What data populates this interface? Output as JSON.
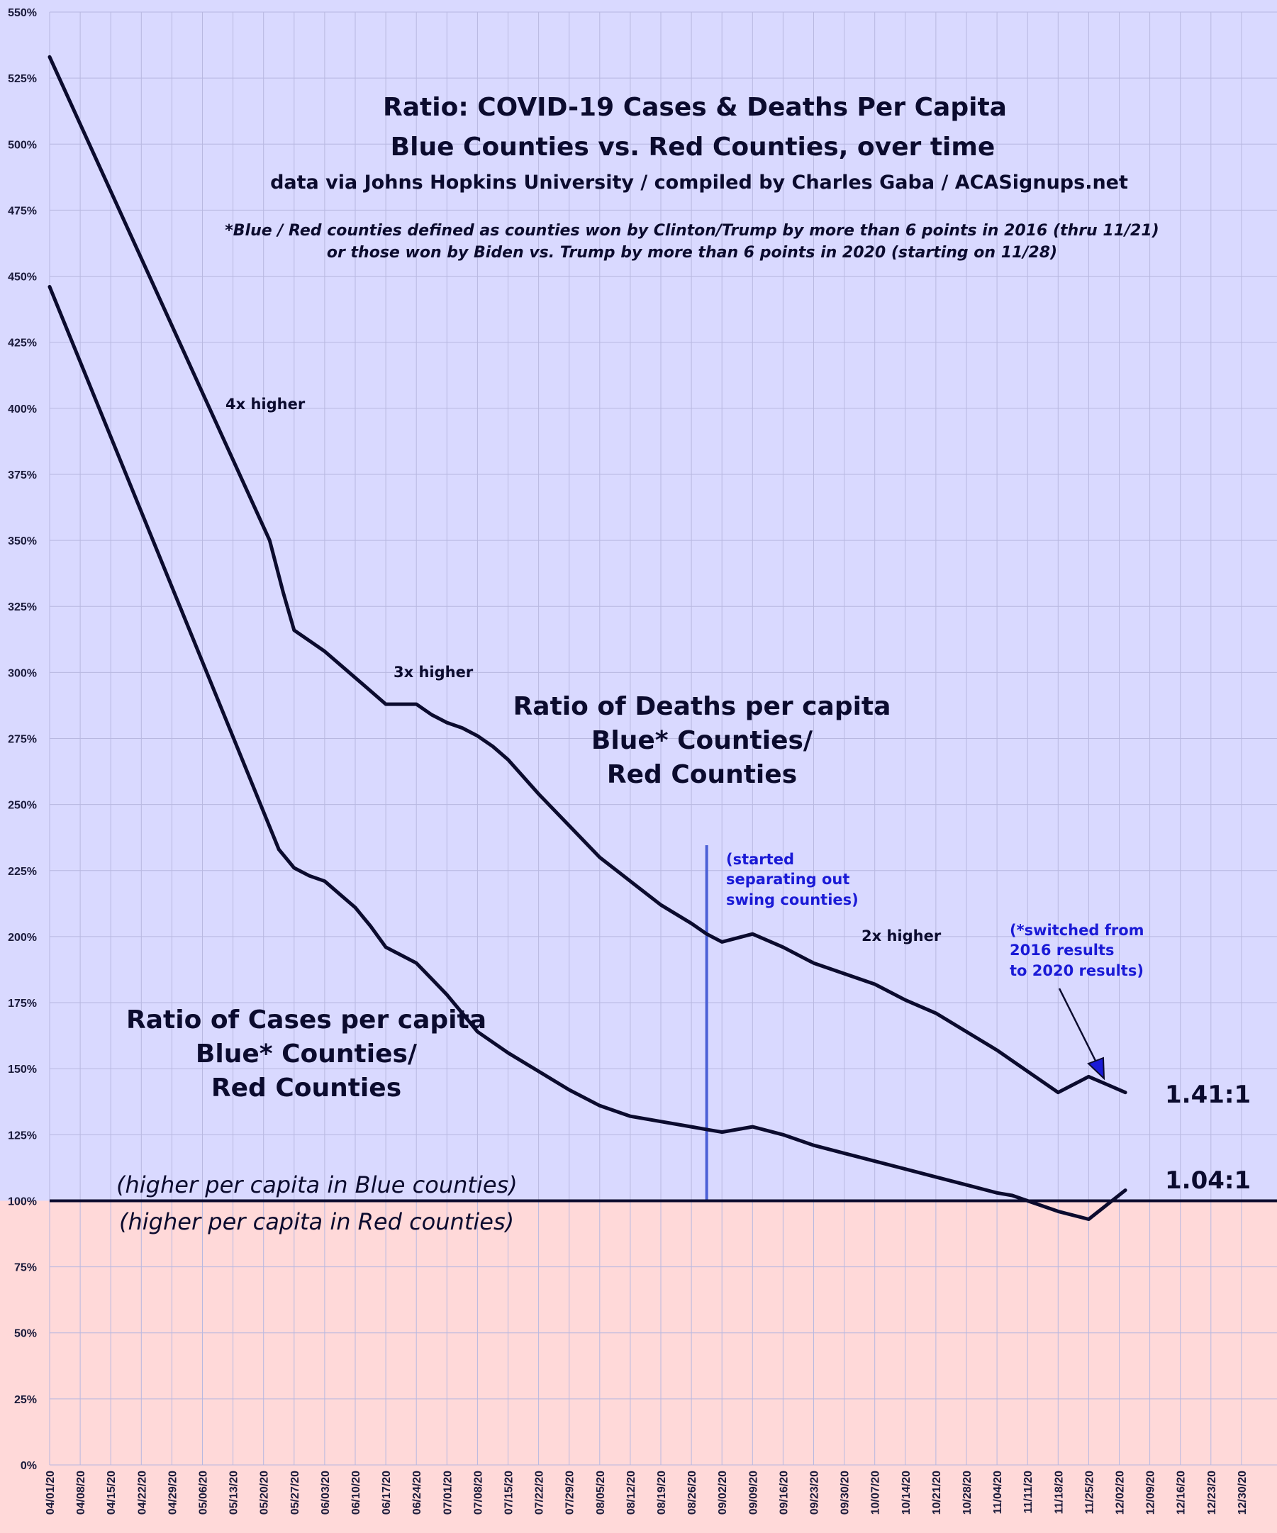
{
  "colors": {
    "blue_region": "#d9d9ff",
    "red_region": "#ffd9d9",
    "grid": "#b8b8e0",
    "line": "#0b0b2e",
    "marker_line": "#4a5fd6",
    "blue_text": "#1a1ad6"
  },
  "chart_data": {
    "type": "line",
    "title": "Ratio: COVID-19 Cases & Deaths Per Capita",
    "subtitle": "Blue Counties vs. Red Counties, over time",
    "source": "data via Johns Hopkins University / compiled by Charles Gaba / ACASignups.net",
    "footnote_line1": "*Blue / Red counties defined as counties won by Clinton/Trump by more than 6 points in 2016 (thru 11/21)",
    "footnote_line2": "or those won by Biden vs. Trump by more than 6 points in 2020 (starting on 11/28)",
    "xlabel": "",
    "ylabel": "",
    "ylim": [
      0,
      550
    ],
    "y_ticks": [
      "0%",
      "25%",
      "50%",
      "75%",
      "100%",
      "125%",
      "150%",
      "175%",
      "200%",
      "225%",
      "250%",
      "275%",
      "300%",
      "325%",
      "350%",
      "375%",
      "400%",
      "425%",
      "450%",
      "475%",
      "500%",
      "525%",
      "550%"
    ],
    "x_tick_labels": [
      "04/01/20",
      "04/08/20",
      "04/15/20",
      "04/22/20",
      "04/29/20",
      "05/06/20",
      "05/13/20",
      "05/20/20",
      "05/27/20",
      "06/03/20",
      "06/10/20",
      "06/17/20",
      "06/24/20",
      "07/01/20",
      "07/08/20",
      "07/15/20",
      "07/22/20",
      "07/29/20",
      "08/05/20",
      "08/12/20",
      "08/19/20",
      "08/26/20",
      "09/02/20",
      "09/09/20",
      "09/16/20",
      "09/23/20",
      "09/30/20",
      "10/07/20",
      "10/14/20",
      "10/21/20",
      "10/28/20",
      "11/04/20",
      "11/11/20",
      "11/18/20",
      "11/25/20",
      "12/02/20",
      "12/09/20",
      "12/16/20",
      "12/23/20",
      "12/30/20"
    ],
    "baseline": 100,
    "series": [
      {
        "name": "Ratio of Deaths per capita Blue* Counties/ Red Counties",
        "x": [
          0,
          7.2,
          7.65,
          8,
          8.5,
          9,
          9.5,
          10,
          10.5,
          11,
          11.5,
          12,
          12.5,
          13,
          13.5,
          14,
          14.5,
          15,
          16,
          17,
          18,
          19,
          20,
          21,
          21.5,
          22,
          23,
          24,
          25,
          26,
          27,
          28,
          29,
          30,
          31,
          32,
          33,
          33.5,
          34,
          34.6,
          35.2
        ],
        "values": [
          533,
          350,
          330,
          316,
          312,
          308,
          303,
          298,
          293,
          288,
          288,
          288,
          284,
          281,
          279,
          276,
          272,
          267,
          254,
          242,
          230,
          221,
          212,
          205,
          201,
          198,
          201,
          196,
          190,
          186,
          182,
          176,
          171,
          164,
          157,
          149,
          141,
          144,
          147,
          144,
          141
        ]
      },
      {
        "name": "Ratio of Cases per capita Blue* Counties/ Red Counties",
        "x": [
          0,
          7.5,
          8,
          8.5,
          9,
          9.5,
          10,
          10.5,
          11,
          11.5,
          12,
          12.5,
          13,
          13.5,
          14,
          15,
          16,
          17,
          18,
          19,
          20,
          21,
          21.5,
          22,
          23,
          24,
          25,
          26,
          27,
          28,
          29,
          30,
          31,
          31.5,
          32,
          33,
          34,
          35.2
        ],
        "values": [
          446,
          233,
          226,
          223,
          221,
          216,
          211,
          204,
          196,
          193,
          190,
          184,
          178,
          171,
          164,
          156,
          149,
          142,
          136,
          132,
          130,
          128,
          127,
          126,
          128,
          125,
          121,
          118,
          115,
          112,
          109,
          106,
          103,
          102,
          100,
          96,
          93,
          104
        ]
      }
    ],
    "annotations": [
      {
        "text": "4x higher"
      },
      {
        "text": "3x higher"
      },
      {
        "text": "2x higher"
      },
      {
        "text": "(started"
      },
      {
        "text": "separating out"
      },
      {
        "text": "swing counties)"
      },
      {
        "text": "(*switched from"
      },
      {
        "text": "2016 results"
      },
      {
        "text": "to 2020 results)"
      },
      {
        "text": "Ratio of Deaths per capita"
      },
      {
        "text": "Blue* Counties/"
      },
      {
        "text": "Red Counties"
      },
      {
        "text": "Ratio of Cases per capita"
      },
      {
        "text": "Blue* Counties/"
      },
      {
        "text": "Red Counties"
      },
      {
        "text": "(higher per capita in Blue counties)"
      },
      {
        "text": "(higher per capita in Red counties)"
      },
      {
        "text": "1.41:1"
      },
      {
        "text": "1.04:1"
      }
    ],
    "vertical_marker_x": 21.5,
    "grid": true,
    "legend": "none"
  }
}
